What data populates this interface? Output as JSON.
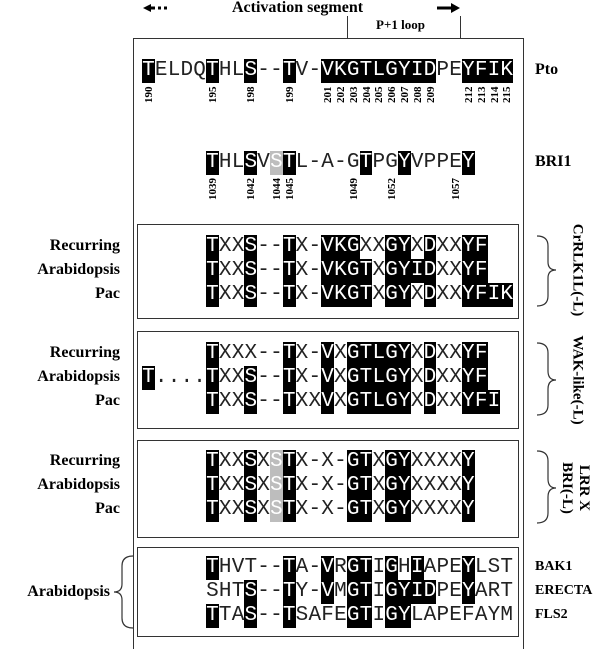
{
  "header": {
    "activation_segment": "Activation segment",
    "p1_loop": "P+1 loop"
  },
  "pto": {
    "name": "Pto",
    "start_col": 0,
    "seq": "TELDQTHLS--TV-VKGTLGYIDPEYFIK",
    "mask": "b....b..b..b..bbbbbbbbb..bbbb",
    "numbers": [
      [
        "190",
        0
      ],
      [
        "195",
        5
      ],
      [
        "198",
        8
      ],
      [
        "199",
        11
      ],
      [
        "201",
        14
      ],
      [
        "202",
        15
      ],
      [
        "203",
        16
      ],
      [
        "204",
        17
      ],
      [
        "205",
        18
      ],
      [
        "206",
        19
      ],
      [
        "207",
        20
      ],
      [
        "208",
        21
      ],
      [
        "209",
        22
      ],
      [
        "212",
        25
      ],
      [
        "213",
        26
      ],
      [
        "214",
        27
      ],
      [
        "215",
        28
      ]
    ]
  },
  "bri1": {
    "name": "BRI1",
    "start_col": 5,
    "seq": "THLSVSTL-A-GTPGYVPPEY",
    "mask": "b..b.gb.....b..b....b",
    "numbers": [
      [
        "1039",
        5
      ],
      [
        "1042",
        8
      ],
      [
        "1044",
        10
      ],
      [
        "1045",
        11
      ],
      [
        "1049",
        16
      ],
      [
        "1052",
        19
      ],
      [
        "1057",
        24
      ]
    ]
  },
  "groups": [
    {
      "family": "CrRLK1L(-L)",
      "rows": [
        {
          "label": "Recurring",
          "start_col": 5,
          "seq": "TXXS--TX-VKGXXGYXDXXYF",
          "mask": "b..b..b..bbb..bb.b..bb"
        },
        {
          "label": "Arabidopsis",
          "start_col": 5,
          "seq": "TXXS--TX-VKGTXGYIDXXYF",
          "mask": "b..b..b..bbbb.bbbb..bb"
        },
        {
          "label": "Pac",
          "start_col": 5,
          "seq": "TXXS--TX-VKGTXGYXDXXYFIK",
          "mask": "b..b..b..bbbb.bb.b..bbbb"
        }
      ]
    },
    {
      "family": "WAK-like(-L)",
      "rows": [
        {
          "label": "Recurring",
          "start_col": 5,
          "seq": "TXXX--TX-VXGTLGYXDXXYF",
          "mask": "b.....b..b.bbbbb.b..bb"
        },
        {
          "label": "Arabidopsis",
          "start_col": 0,
          "seq": "T....TXXS--TX-VXGTLGYXDXXYF",
          "mask": "b....b..b..b..b.bbbbb.b..bb"
        },
        {
          "label": "Pac",
          "start_col": 5,
          "seq": "TXXS--TXXVXGTLGYXDXXYFI",
          "mask": "b..b..b..b.bbbbb.b..bbb"
        }
      ]
    },
    {
      "family": "LRR X\nBRI(-L)",
      "rows": [
        {
          "label": "Recurring",
          "start_col": 5,
          "seq": "TXXSXSTX-X-GTXGYXXXXY",
          "mask": "b..b.gb....bb.bb....b"
        },
        {
          "label": "Arabidopsis",
          "start_col": 5,
          "seq": "TXXSXSTX-X-GTXGYXXXXY",
          "mask": "b..b.gb....bb.bb....b"
        },
        {
          "label": "Pac",
          "start_col": 5,
          "seq": "TXXSXSTX-X-GTXGYXXXXY",
          "mask": "b..b.gb....bb.bb....b"
        }
      ]
    }
  ],
  "arabidopsis_group": {
    "label": "Arabidopsis",
    "rows": [
      {
        "name": "BAK1",
        "start_col": 5,
        "seq": "THVT--TA-VRGTIGHIAPEYLST",
        "mask": "b.....b..b.bb.b.b...b..."
      },
      {
        "name": "ERECTA",
        "start_col": 5,
        "seq": "SHTS--TY-VMGTIGYIDPEYART",
        "mask": "...b..b..b.bb.bbbb..b..."
      },
      {
        "name": "FLS2",
        "start_col": 5,
        "seq": "TTAS--TSAFEGTIGYLAPEFAYM",
        "mask": "b..b..b....bb.bb........"
      }
    ]
  },
  "colors": {
    "conserved": "#000000",
    "partial": "#bdbdbd"
  }
}
